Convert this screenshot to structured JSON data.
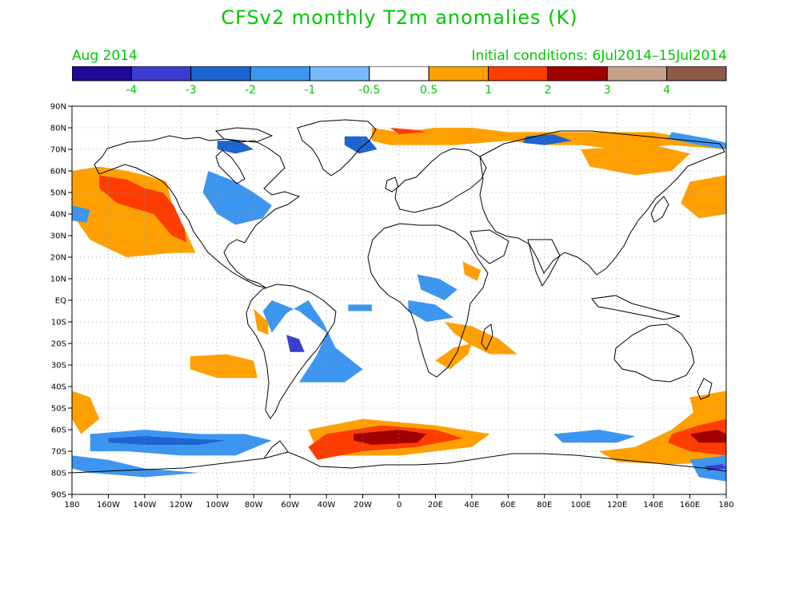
{
  "header": {
    "title": "CFSv2 monthly T2m anomalies (K)",
    "month": "Aug 2014",
    "initial_conditions": "Initial conditions: 6Jul2014–15Jul2014"
  },
  "colors": {
    "text_accent": "#00c800",
    "ocean": "#ffffff",
    "coast": "#000000",
    "grid": "#9a9a9a"
  },
  "legend": {
    "bins": [
      {
        "color": "#1e0a96"
      },
      {
        "color": "#3c3cd2"
      },
      {
        "color": "#1e64d2"
      },
      {
        "color": "#3c96f0"
      },
      {
        "color": "#78b9fa"
      },
      {
        "color": "#ffffff"
      },
      {
        "color": "#ffa000"
      },
      {
        "color": "#ff3c00"
      },
      {
        "color": "#a00000"
      },
      {
        "color": "#c8a08c"
      },
      {
        "color": "#8c5a46"
      }
    ],
    "tick_labels": [
      "-4",
      "-3",
      "-2",
      "-1",
      "-0.5",
      "0.5",
      "1",
      "2",
      "3",
      "4"
    ]
  },
  "map": {
    "lon_range": [
      -180,
      180
    ],
    "lat_range": [
      -90,
      90
    ],
    "lat_labels": [
      "90N",
      "80N",
      "70N",
      "60N",
      "50N",
      "40N",
      "30N",
      "20N",
      "10N",
      "EQ",
      "10S",
      "20S",
      "30S",
      "40S",
      "50S",
      "60S",
      "70S",
      "80S",
      "90S"
    ],
    "lon_labels": [
      "180",
      "160W",
      "140W",
      "120W",
      "100W",
      "80W",
      "60W",
      "40W",
      "20W",
      "0",
      "20E",
      "40E",
      "60E",
      "80E",
      "100E",
      "120E",
      "140E",
      "160E",
      "180"
    ],
    "anomaly_regions": [
      {
        "level": "1",
        "points": [
          [
            -180,
            60
          ],
          [
            -165,
            62
          ],
          [
            -150,
            60
          ],
          [
            -140,
            58
          ],
          [
            -128,
            55
          ],
          [
            -125,
            45
          ],
          [
            -118,
            33
          ],
          [
            -112,
            22
          ],
          [
            -125,
            22
          ],
          [
            -150,
            20
          ],
          [
            -170,
            28
          ],
          [
            -180,
            40
          ]
        ]
      },
      {
        "level": "2",
        "points": [
          [
            -165,
            58
          ],
          [
            -150,
            56
          ],
          [
            -140,
            52
          ],
          [
            -130,
            50
          ],
          [
            -124,
            44
          ],
          [
            -118,
            33
          ],
          [
            -117,
            27
          ],
          [
            -125,
            30
          ],
          [
            -135,
            40
          ],
          [
            -155,
            45
          ],
          [
            -165,
            52
          ]
        ]
      },
      {
        "level": "-1",
        "points": [
          [
            -180,
            44
          ],
          [
            -170,
            42
          ],
          [
            -172,
            36
          ],
          [
            -180,
            37
          ]
        ]
      },
      {
        "level": "-1",
        "points": [
          [
            -105,
            60
          ],
          [
            -90,
            55
          ],
          [
            -80,
            50
          ],
          [
            -70,
            44
          ],
          [
            -75,
            38
          ],
          [
            -90,
            35
          ],
          [
            -100,
            40
          ],
          [
            -108,
            50
          ]
        ]
      },
      {
        "level": "-1",
        "points": [
          [
            -70,
            0
          ],
          [
            -55,
            -5
          ],
          [
            -40,
            -15
          ],
          [
            -45,
            -25
          ],
          [
            -55,
            -38
          ],
          [
            -30,
            -38
          ],
          [
            -20,
            -32
          ],
          [
            -35,
            -22
          ],
          [
            -42,
            -10
          ],
          [
            -50,
            0
          ],
          [
            -62,
            -6
          ],
          [
            -70,
            -15
          ],
          [
            -75,
            -5
          ]
        ]
      },
      {
        "level": "-3",
        "points": [
          [
            -62,
            -16
          ],
          [
            -55,
            -18
          ],
          [
            -52,
            -24
          ],
          [
            -60,
            -24
          ]
        ]
      },
      {
        "level": "1",
        "points": [
          [
            -115,
            -26
          ],
          [
            -95,
            -25
          ],
          [
            -80,
            -28
          ],
          [
            -78,
            -36
          ],
          [
            -100,
            -36
          ],
          [
            -115,
            -32
          ]
        ]
      },
      {
        "level": "1",
        "points": [
          [
            -80,
            -4
          ],
          [
            -72,
            -10
          ],
          [
            -72,
            -16
          ],
          [
            -78,
            -14
          ]
        ]
      },
      {
        "level": "-1",
        "points": [
          [
            -28,
            -2
          ],
          [
            -15,
            -2
          ],
          [
            -15,
            -5
          ],
          [
            -28,
            -5
          ]
        ]
      },
      {
        "level": "1",
        "points": [
          [
            25,
            -10
          ],
          [
            40,
            -12
          ],
          [
            55,
            -18
          ],
          [
            65,
            -25
          ],
          [
            50,
            -25
          ],
          [
            38,
            -20
          ],
          [
            30,
            -15
          ]
        ]
      },
      {
        "level": "1",
        "points": [
          [
            40,
            -20
          ],
          [
            30,
            -22
          ],
          [
            20,
            -28
          ],
          [
            28,
            -32
          ],
          [
            38,
            -25
          ]
        ]
      },
      {
        "level": "-1",
        "points": [
          [
            5,
            0
          ],
          [
            20,
            -2
          ],
          [
            30,
            -8
          ],
          [
            15,
            -10
          ],
          [
            5,
            -5
          ]
        ]
      },
      {
        "level": "-1",
        "points": [
          [
            10,
            12
          ],
          [
            22,
            10
          ],
          [
            32,
            5
          ],
          [
            25,
            0
          ],
          [
            12,
            5
          ]
        ]
      },
      {
        "level": "1",
        "points": [
          [
            35,
            18
          ],
          [
            45,
            14
          ],
          [
            43,
            9
          ],
          [
            36,
            12
          ]
        ]
      },
      {
        "level": "1",
        "points": [
          [
            -15,
            80
          ],
          [
            0,
            78
          ],
          [
            20,
            80
          ],
          [
            40,
            80
          ],
          [
            60,
            78
          ],
          [
            80,
            78
          ],
          [
            105,
            78
          ],
          [
            140,
            78
          ],
          [
            160,
            75
          ],
          [
            180,
            73
          ],
          [
            180,
            70
          ],
          [
            150,
            72
          ],
          [
            120,
            70
          ],
          [
            100,
            72
          ],
          [
            80,
            72
          ],
          [
            60,
            74
          ],
          [
            30,
            72
          ],
          [
            10,
            72
          ],
          [
            -5,
            72
          ],
          [
            -15,
            74
          ]
        ]
      },
      {
        "level": "1",
        "points": [
          [
            100,
            70
          ],
          [
            140,
            72
          ],
          [
            160,
            68
          ],
          [
            150,
            60
          ],
          [
            130,
            58
          ],
          [
            105,
            62
          ]
        ]
      },
      {
        "level": "2",
        "points": [
          [
            -5,
            80
          ],
          [
            10,
            79
          ],
          [
            15,
            78
          ],
          [
            0,
            77
          ]
        ]
      },
      {
        "level": "-2",
        "points": [
          [
            -100,
            74
          ],
          [
            -88,
            74
          ],
          [
            -80,
            70
          ],
          [
            -90,
            68
          ],
          [
            -100,
            70
          ]
        ]
      },
      {
        "level": "-2",
        "points": [
          [
            -30,
            76
          ],
          [
            -18,
            76
          ],
          [
            -12,
            70
          ],
          [
            -22,
            68
          ],
          [
            -30,
            72
          ]
        ]
      },
      {
        "level": "-2",
        "points": [
          [
            70,
            76
          ],
          [
            85,
            77
          ],
          [
            95,
            74
          ],
          [
            80,
            72
          ],
          [
            68,
            73
          ]
        ]
      },
      {
        "level": "-1",
        "points": [
          [
            150,
            78
          ],
          [
            170,
            75
          ],
          [
            180,
            73
          ],
          [
            180,
            70
          ],
          [
            165,
            72
          ],
          [
            148,
            75
          ]
        ]
      },
      {
        "level": "1",
        "points": [
          [
            160,
            55
          ],
          [
            180,
            58
          ],
          [
            180,
            40
          ],
          [
            165,
            38
          ],
          [
            155,
            45
          ]
        ]
      },
      {
        "level": "1",
        "points": [
          [
            -175,
            -62
          ],
          [
            -180,
            -55
          ],
          [
            -180,
            -42
          ],
          [
            -170,
            -45
          ],
          [
            -165,
            -55
          ]
        ]
      },
      {
        "level": "1",
        "points": [
          [
            160,
            -45
          ],
          [
            180,
            -42
          ],
          [
            180,
            -75
          ],
          [
            150,
            -76
          ],
          [
            120,
            -75
          ],
          [
            110,
            -70
          ],
          [
            130,
            -68
          ],
          [
            150,
            -60
          ],
          [
            162,
            -52
          ]
        ]
      },
      {
        "level": "2",
        "points": [
          [
            150,
            -62
          ],
          [
            165,
            -58
          ],
          [
            180,
            -55
          ],
          [
            180,
            -72
          ],
          [
            160,
            -70
          ],
          [
            148,
            -66
          ]
        ]
      },
      {
        "level": "3",
        "points": [
          [
            160,
            -62
          ],
          [
            175,
            -60
          ],
          [
            180,
            -62
          ],
          [
            180,
            -66
          ],
          [
            165,
            -66
          ]
        ]
      },
      {
        "level": "1",
        "points": [
          [
            -50,
            -60
          ],
          [
            -20,
            -55
          ],
          [
            20,
            -58
          ],
          [
            50,
            -62
          ],
          [
            40,
            -68
          ],
          [
            0,
            -72
          ],
          [
            -30,
            -72
          ],
          [
            -45,
            -70
          ]
        ]
      },
      {
        "level": "2",
        "points": [
          [
            -40,
            -62
          ],
          [
            -10,
            -58
          ],
          [
            20,
            -60
          ],
          [
            35,
            -64
          ],
          [
            10,
            -68
          ],
          [
            -20,
            -70
          ],
          [
            -45,
            -74
          ],
          [
            -50,
            -68
          ]
        ]
      },
      {
        "level": "3",
        "points": [
          [
            -25,
            -62
          ],
          [
            0,
            -60
          ],
          [
            15,
            -62
          ],
          [
            10,
            -66
          ],
          [
            -15,
            -67
          ],
          [
            -25,
            -65
          ]
        ]
      },
      {
        "level": "-1",
        "points": [
          [
            -170,
            -62
          ],
          [
            -140,
            -60
          ],
          [
            -110,
            -62
          ],
          [
            -85,
            -62
          ],
          [
            -70,
            -65
          ],
          [
            -90,
            -72
          ],
          [
            -120,
            -72
          ],
          [
            -150,
            -70
          ],
          [
            -170,
            -70
          ]
        ]
      },
      {
        "level": "-2",
        "points": [
          [
            -160,
            -64
          ],
          [
            -140,
            -63
          ],
          [
            -120,
            -64
          ],
          [
            -95,
            -65
          ],
          [
            -110,
            -67
          ],
          [
            -140,
            -67
          ],
          [
            -160,
            -66
          ]
        ]
      },
      {
        "level": "-1",
        "points": [
          [
            -180,
            -72
          ],
          [
            -160,
            -74
          ],
          [
            -140,
            -78
          ],
          [
            -110,
            -80
          ],
          [
            -140,
            -82
          ],
          [
            -170,
            -80
          ],
          [
            -180,
            -78
          ]
        ]
      },
      {
        "level": "-1",
        "points": [
          [
            85,
            -62
          ],
          [
            110,
            -60
          ],
          [
            130,
            -63
          ],
          [
            120,
            -66
          ],
          [
            90,
            -66
          ]
        ]
      },
      {
        "level": "-1",
        "points": [
          [
            160,
            -74
          ],
          [
            180,
            -72
          ],
          [
            180,
            -84
          ],
          [
            165,
            -82
          ]
        ]
      },
      {
        "level": "-3",
        "points": [
          [
            168,
            -77
          ],
          [
            178,
            -76
          ],
          [
            180,
            -78
          ],
          [
            170,
            -79
          ]
        ]
      }
    ]
  }
}
